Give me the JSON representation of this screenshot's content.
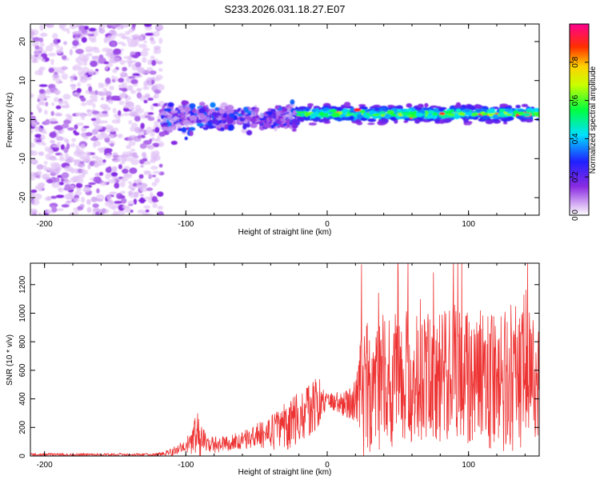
{
  "title": "S233.2026.031.18.27.E07",
  "chart_data": [
    {
      "type": "heatmap",
      "xlabel": "Height of straight line (km)",
      "ylabel": "Frequency (Hz)",
      "xlim": [
        -210,
        150
      ],
      "ylim": [
        -24.5,
        24.5
      ],
      "xticks": [
        -200,
        -100,
        0,
        100
      ],
      "xtick_labels": [
        "-200",
        "-100",
        "0",
        "100"
      ],
      "yticks": [
        -20,
        -10,
        0,
        10,
        20
      ],
      "ytick_labels": [
        "-20",
        "-10",
        "0",
        "10",
        "20"
      ],
      "colorbar": {
        "label": "Normalized spectral amplitude",
        "range": [
          0,
          1
        ],
        "ticks": [
          0,
          0.2,
          0.4,
          0.6,
          0.8
        ],
        "tick_labels": [
          "0.0",
          "0.2",
          "0.4",
          "0.6",
          "0.8"
        ],
        "colormap": "rainbow (purple → blue → cyan → green → yellow → red → magenta)"
      },
      "regions": [
        {
          "name": "noise",
          "x_range": [
            -210,
            -117
          ],
          "freq_range": [
            -24.5,
            24.5
          ],
          "amplitude": [
            0.0,
            0.1
          ]
        },
        {
          "name": "onset",
          "x_range": [
            -117,
            -20
          ],
          "freq_range": [
            -10,
            10
          ],
          "amplitude": [
            0.05,
            0.35
          ]
        },
        {
          "name": "signal-band",
          "x_range": [
            -20,
            150
          ],
          "center_freq": 1.5,
          "half_width": 3.5,
          "amplitude": [
            0.3,
            0.95
          ]
        }
      ]
    },
    {
      "type": "line",
      "xlabel": "Height of straight line (km)",
      "ylabel": "SNR (10 * v/v)",
      "xlim": [
        -210,
        150
      ],
      "ylim": [
        0,
        1350
      ],
      "xticks": [
        -200,
        -100,
        0,
        100
      ],
      "xtick_labels": [
        "-200",
        "-100",
        "0",
        "100"
      ],
      "yticks": [
        0,
        200,
        400,
        600,
        800,
        1000,
        1200
      ],
      "ytick_labels": [
        "0",
        "200",
        "400",
        "600",
        "800",
        "1000",
        "1200"
      ],
      "series": [
        {
          "name": "SNR",
          "color": "#ee3333",
          "envelope_x": [
            -210,
            -120,
            -110,
            -100,
            -92,
            -88,
            -80,
            -60,
            -40,
            -30,
            -20,
            -10,
            -5,
            0,
            10,
            20,
            25,
            35,
            50,
            70,
            90,
            110,
            130,
            150
          ],
          "envelope_mean": [
            10,
            10,
            30,
            70,
            140,
            100,
            80,
            110,
            160,
            200,
            280,
            340,
            380,
            400,
            360,
            380,
            420,
            520,
            540,
            560,
            580,
            560,
            540,
            520
          ],
          "envelope_spread": [
            10,
            10,
            30,
            40,
            180,
            90,
            60,
            60,
            120,
            170,
            190,
            200,
            160,
            40,
            90,
            150,
            500,
            480,
            470,
            460,
            480,
            500,
            520,
            480
          ]
        }
      ]
    }
  ]
}
